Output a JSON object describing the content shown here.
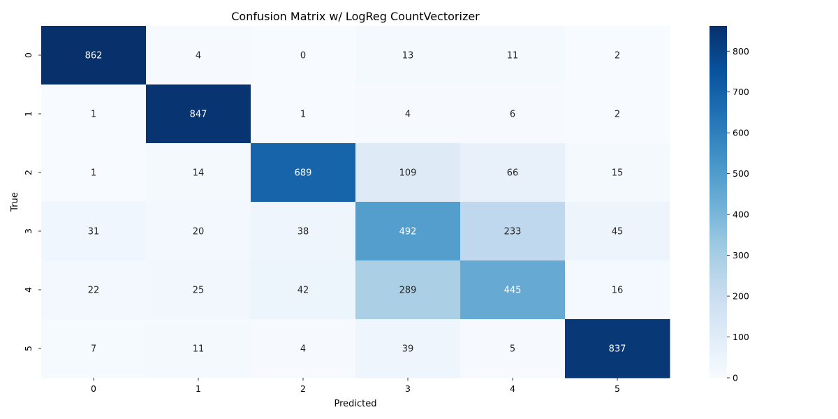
{
  "chart_data": {
    "type": "heatmap",
    "title": "Confusion Matrix w/ LogReg CountVectorizer",
    "xlabel": "Predicted",
    "ylabel": "True",
    "x_categories": [
      "0",
      "1",
      "2",
      "3",
      "4",
      "5"
    ],
    "y_categories": [
      "0",
      "1",
      "2",
      "3",
      "4",
      "5"
    ],
    "values": [
      [
        862,
        4,
        0,
        13,
        11,
        2
      ],
      [
        1,
        847,
        1,
        4,
        6,
        2
      ],
      [
        1,
        14,
        689,
        109,
        66,
        15
      ],
      [
        31,
        20,
        38,
        492,
        233,
        45
      ],
      [
        22,
        25,
        42,
        289,
        445,
        16
      ],
      [
        7,
        11,
        4,
        39,
        5,
        837
      ]
    ],
    "colormap": "Blues",
    "colorbar": {
      "range": [
        0,
        862
      ],
      "ticks": [
        0,
        100,
        200,
        300,
        400,
        500,
        600,
        700,
        800
      ]
    }
  }
}
